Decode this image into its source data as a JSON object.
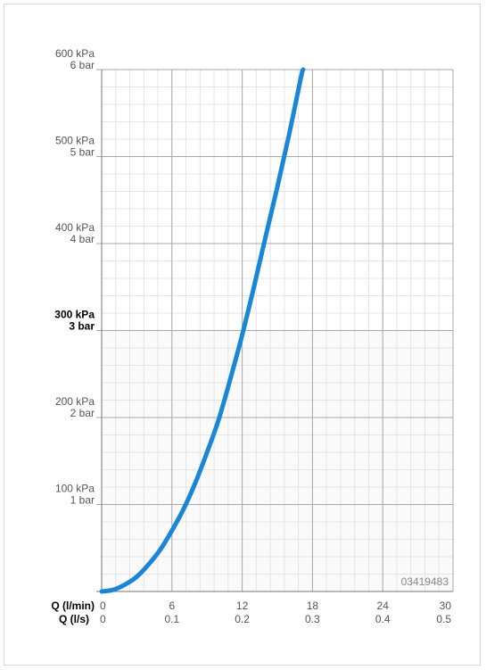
{
  "chart_data": {
    "type": "line",
    "x_axis_primary": {
      "label": "Q (l/min)",
      "ticks": [
        "0",
        "6",
        "12",
        "18",
        "24",
        "30"
      ],
      "range": [
        0,
        30
      ]
    },
    "x_axis_secondary": {
      "label": "Q (l/s)",
      "ticks": [
        "0",
        "0.1",
        "0.2",
        "0.3",
        "0.4",
        "0.5"
      ]
    },
    "y_axis": {
      "range": [
        0,
        600
      ],
      "ticks": [
        {
          "value": 100,
          "kpa": "100 kPa",
          "bar": "1 bar",
          "bold": false
        },
        {
          "value": 200,
          "kpa": "200 kPa",
          "bar": "2 bar",
          "bold": false
        },
        {
          "value": 300,
          "kpa": "300 kPa",
          "bar": "3 bar",
          "bold": true
        },
        {
          "value": 400,
          "kpa": "400 kPa",
          "bar": "4 bar",
          "bold": false
        },
        {
          "value": 500,
          "kpa": "500 kPa",
          "bar": "5 bar",
          "bold": false
        },
        {
          "value": 600,
          "kpa": "600 kPa",
          "bar": "6 bar",
          "bold": false
        }
      ]
    },
    "grid": true,
    "minor_grid": {
      "x_step": 1.2,
      "y_step": 20
    },
    "series": [
      {
        "color": "#1a86d8",
        "points": [
          [
            0,
            0
          ],
          [
            1,
            2
          ],
          [
            2,
            8
          ],
          [
            3,
            17
          ],
          [
            4,
            31
          ],
          [
            5,
            48
          ],
          [
            6,
            70
          ],
          [
            7,
            95
          ],
          [
            8,
            125
          ],
          [
            9,
            160
          ],
          [
            10,
            198
          ],
          [
            11,
            245
          ],
          [
            12,
            295
          ],
          [
            13,
            350
          ],
          [
            14,
            408
          ],
          [
            15,
            465
          ],
          [
            16,
            525
          ],
          [
            17,
            590
          ],
          [
            17.2,
            600
          ]
        ]
      }
    ],
    "watermark": "03419483"
  }
}
